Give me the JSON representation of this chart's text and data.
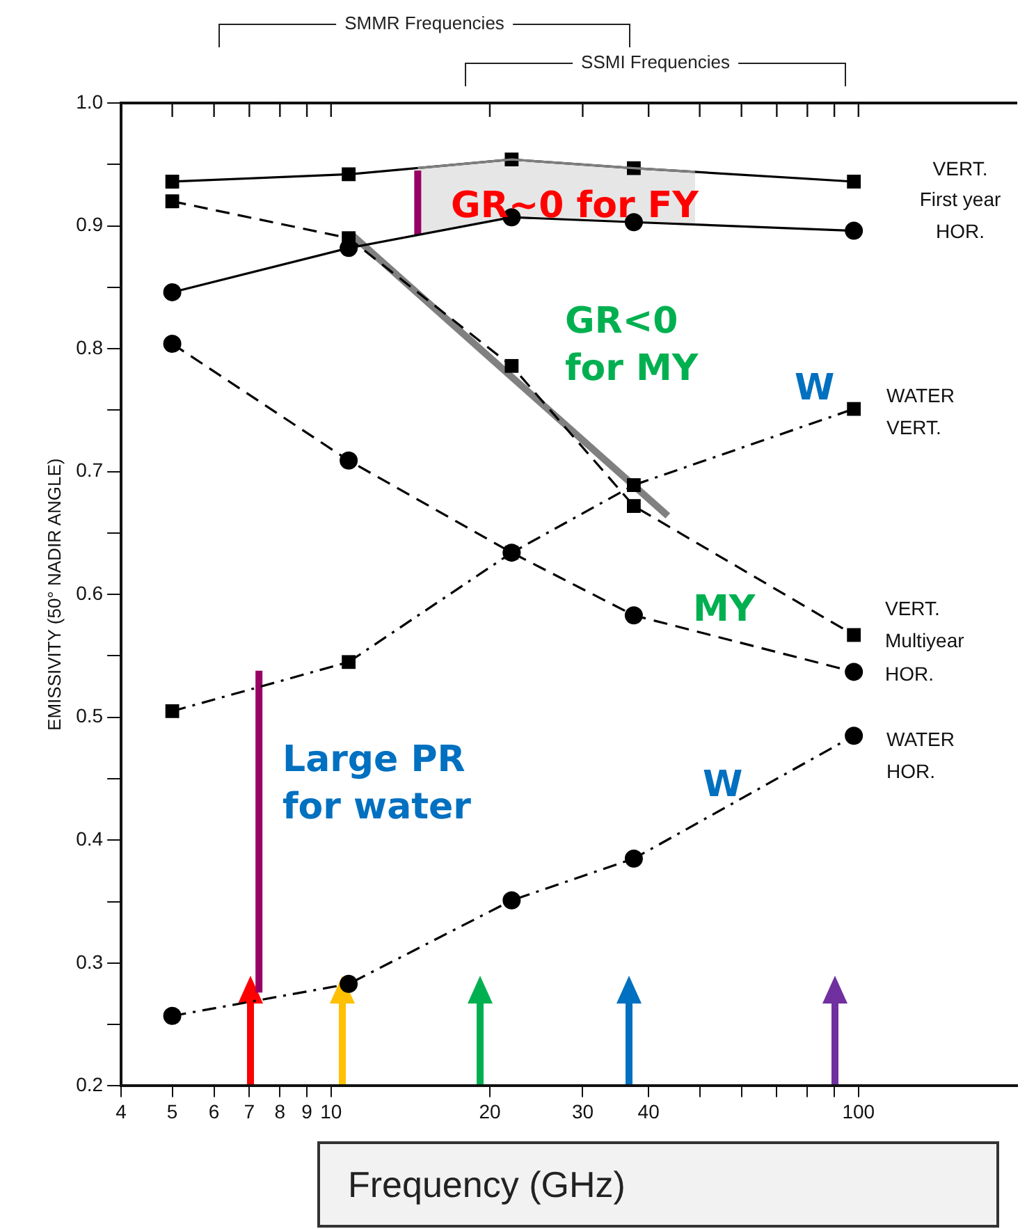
{
  "chart_data": {
    "type": "line",
    "xlabel": "Frequency (GHz)",
    "ylabel": "EMISSIVITY (50° NADIR ANGLE)",
    "log": "x",
    "grid": false,
    "legend": false,
    "xlim": [
      4,
      200
    ],
    "xticks": [
      4,
      5,
      6,
      7,
      8,
      9,
      10,
      20,
      30,
      40,
      {
        "value": 50,
        "label": null
      },
      {
        "value": 60,
        "label": null
      },
      {
        "value": 70,
        "label": null
      },
      {
        "value": 80,
        "label": null
      },
      {
        "value": 90,
        "label": null
      },
      100
    ],
    "ylim": [
      0.2,
      1.0
    ],
    "yticks": [
      0.2,
      {
        "value": 0.25,
        "label": null
      },
      0.3,
      {
        "value": 0.35,
        "label": null
      },
      0.4,
      {
        "value": 0.45,
        "label": null
      },
      0.5,
      {
        "value": 0.55,
        "label": null
      },
      0.6,
      {
        "value": 0.65,
        "label": null
      },
      0.7,
      {
        "value": 0.75,
        "label": null
      },
      0.8,
      {
        "value": 0.85,
        "label": null
      },
      0.9,
      {
        "value": 0.95,
        "label": null
      },
      {
        "value": 1.0,
        "label": "1.0"
      }
    ],
    "x": [
      5,
      10.8,
      22,
      37.5,
      98
    ],
    "series": [
      {
        "color": "#808080",
        "marker": "none",
        "line_style": "solid",
        "x": [
          14.6,
          22,
          37.5,
          49
        ],
        "values": [
          0.947,
          0.954,
          0.947,
          0.944
        ],
        "lower": [
          0.893,
          0.907,
          0.903,
          0.901
        ],
        "upper": [
          0.947,
          0.954,
          0.947,
          0.944
        ]
      },
      {
        "color": "#000000",
        "marker": "square",
        "line_style": "solid",
        "values": [
          0.936,
          0.942,
          0.954,
          0.947,
          0.936
        ]
      },
      {
        "color": "#000000",
        "marker": "circle",
        "line_style": "solid",
        "values": [
          0.846,
          0.882,
          0.907,
          0.903,
          0.896
        ]
      },
      {
        "color": "#000000",
        "marker": "square",
        "line_style": "dashed",
        "values": [
          0.92,
          0.89,
          0.786,
          0.672,
          0.567
        ]
      },
      {
        "color": "#000000",
        "marker": "circle",
        "line_style": "dashed",
        "values": [
          0.804,
          0.709,
          0.634,
          0.583,
          0.537
        ]
      },
      {
        "color": "#000000",
        "marker": "square",
        "line_style": "dashdot",
        "values": [
          0.505,
          0.545,
          0.634,
          0.689,
          0.751
        ]
      },
      {
        "color": "#000000",
        "marker": "circle",
        "line_style": "dashdot",
        "values": [
          0.257,
          0.283,
          0.351,
          0.385,
          0.485
        ]
      },
      {
        "color": "#808080",
        "marker": "none",
        "line_style": "solid",
        "x": [
          11,
          43.5
        ],
        "values": [
          0.892,
          0.664
        ]
      },
      {
        "color": "#990066",
        "marker": "none",
        "line_style": "solid",
        "x": [
          7.3,
          7.3
        ],
        "values": [
          0.276,
          0.538
        ]
      },
      {
        "color": "#990066",
        "marker": "none",
        "line_style": "solid",
        "x": [
          14.6,
          14.6
        ],
        "values": [
          0.893,
          0.945
        ]
      }
    ],
    "annotations": [
      "GR~0 for FY",
      "GR<0\nfor MY",
      "W",
      "MY",
      "W",
      "Large PR\nfor water",
      "VERT.\nFirst year\nHOR.",
      "WATER\nVERT.",
      "VERT.\nMultiyear\nHOR.",
      "WATER\nHOR.",
      "SMMR Frequencies",
      "SSMI Frequencies"
    ]
  }
}
